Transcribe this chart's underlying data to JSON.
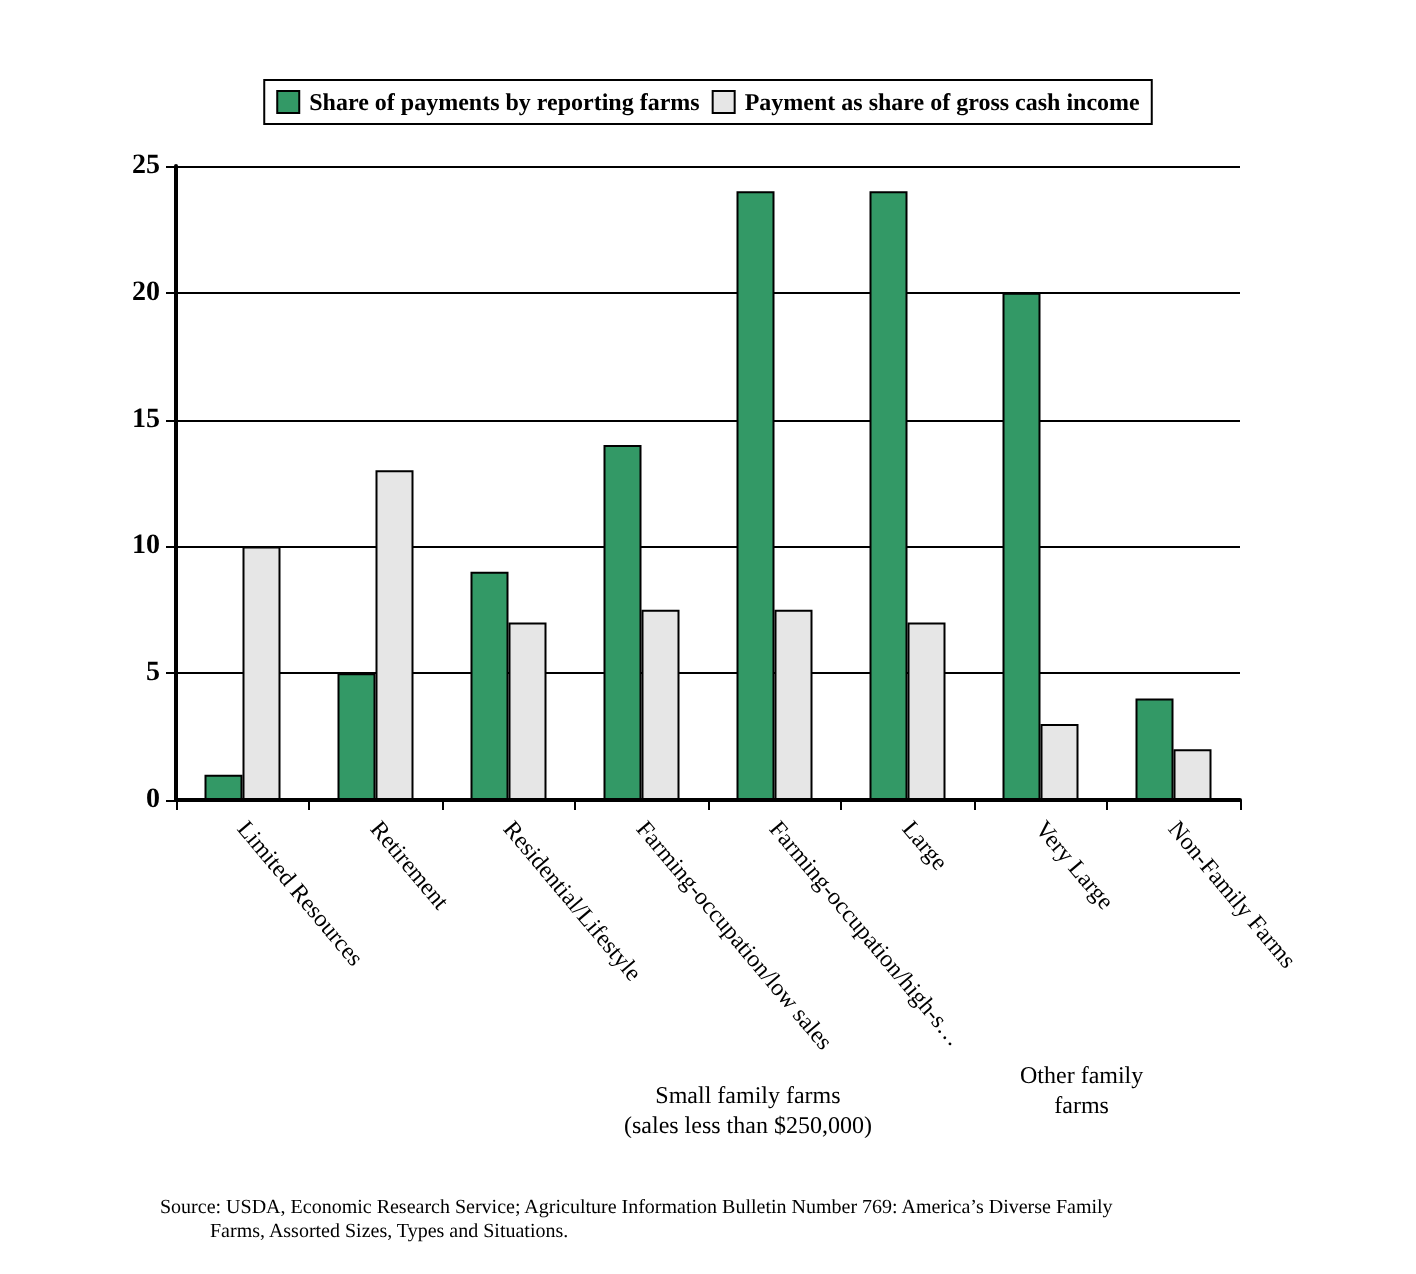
{
  "chart_data": {
    "type": "bar",
    "categories": [
      "Limited Resources",
      "Retirement",
      "Residential/Lifestyle",
      "Farming-occupation/low sales",
      "Farming-occupation/high-s…",
      "Large",
      "Very Large",
      "Non-Family Farms"
    ],
    "series": [
      {
        "name": "Share of payments by reporting farms",
        "color": "#339966",
        "values": [
          1,
          5,
          9,
          14,
          24,
          24,
          20,
          4
        ]
      },
      {
        "name": "Payment as share of gross cash income",
        "color": "#e6e6e6",
        "values": [
          10,
          13,
          7,
          7.5,
          7.5,
          7,
          3,
          2
        ]
      }
    ],
    "ylim": [
      0,
      25
    ],
    "yticks": [
      0,
      5,
      10,
      15,
      20,
      25
    ],
    "grid": "y",
    "legend": "top",
    "annotations": [
      "Small family farms\n(sales less than $250,000)",
      "Other family\nfarms",
      "Source: USDA, Economic Research Service; Agriculture Information Bulletin Number 769: America’s Diverse Family\n          Farms, Assorted Sizes, Types and Situations."
    ]
  }
}
